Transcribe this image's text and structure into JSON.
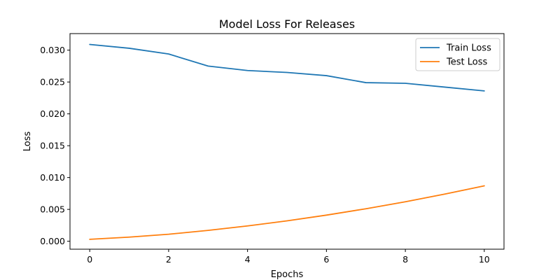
{
  "chart_data": {
    "type": "line",
    "title": "Model Loss For Releases",
    "xlabel": "Epochs",
    "ylabel": "Loss",
    "x": [
      0,
      1,
      2,
      3,
      4,
      5,
      6,
      7,
      8,
      9,
      10
    ],
    "xlim": [
      -0.5,
      10.5
    ],
    "ylim": [
      -0.00125,
      0.0326
    ],
    "xticks": [
      0,
      2,
      4,
      6,
      8,
      10
    ],
    "xtick_labels": [
      "0",
      "2",
      "4",
      "6",
      "8",
      "10"
    ],
    "yticks": [
      0.0,
      0.005,
      0.01,
      0.015,
      0.02,
      0.025,
      0.03
    ],
    "ytick_labels": [
      "0.000",
      "0.005",
      "0.010",
      "0.015",
      "0.020",
      "0.025",
      "0.030"
    ],
    "grid": false,
    "legend_position": "top-right",
    "series": [
      {
        "name": "Train Loss",
        "color": "#1f77b4",
        "values": [
          0.0309,
          0.0303,
          0.0294,
          0.0275,
          0.0268,
          0.0265,
          0.026,
          0.0249,
          0.0248,
          0.0242,
          0.0236
        ]
      },
      {
        "name": "Test Loss",
        "color": "#ff7f0e",
        "values": [
          0.0003,
          0.00065,
          0.0011,
          0.0017,
          0.0024,
          0.0032,
          0.0041,
          0.0051,
          0.0062,
          0.0074,
          0.0087
        ]
      }
    ]
  }
}
